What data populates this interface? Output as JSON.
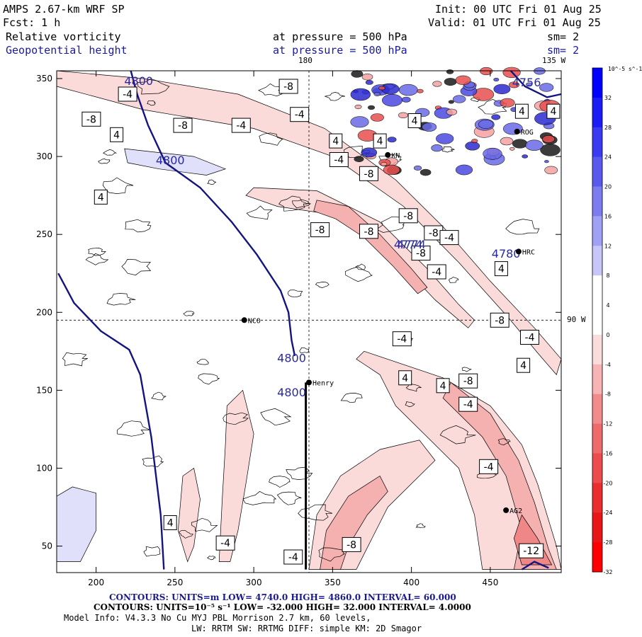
{
  "header": {
    "model": "AMPS 2.67-km WRF SP",
    "forecast": "Fcst:     1 h",
    "init": "Init: 00 UTC Fri 01 Aug 25",
    "valid": "Valid: 01 UTC Fri 01 Aug 25",
    "field1_name": "Relative vorticity",
    "field1_level": "at pressure =  500 hPa",
    "field1_sm": "sm= 2",
    "field2_name": "Geopotential height",
    "field2_level": "at pressure =  500 hPa",
    "field2_sm": "sm= 2"
  },
  "map_labels": {
    "lon_180": "180",
    "lon_135w": "135 W",
    "lon_90w": "90 W"
  },
  "stations": [
    {
      "name": "NCO",
      "x": 294,
      "y": 195
    },
    {
      "name": "Henry",
      "x": 335,
      "y": 155
    },
    {
      "name": "HRC",
      "x": 468,
      "y": 239
    },
    {
      "name": "AG2",
      "x": 460,
      "y": 73
    },
    {
      "name": "KN",
      "x": 385,
      "y": 301
    },
    {
      "name": "ROG",
      "x": 467,
      "y": 316
    }
  ],
  "colorbar": {
    "unit": "10^-5 s^-1",
    "labels": [
      "32",
      "28",
      "24",
      "20",
      "16",
      "12",
      "8",
      "4",
      "0",
      "-4",
      "-8",
      "-12",
      "-16",
      "-20",
      "-24",
      "-28",
      "-32"
    ],
    "colors": [
      "#0000ff",
      "#1b1bf6",
      "#3a3af0",
      "#5959ee",
      "#7c7cf0",
      "#a0a0f4",
      "#c6c6f8",
      "#ffffff",
      "#ffffff",
      "#fadcdc",
      "#f6b4b4",
      "#f28c8c",
      "#ef6a6a",
      "#ec4c4c",
      "#ea2e2e",
      "#e81616",
      "#ff0000"
    ]
  },
  "footer": {
    "line1": "CONTOURS:  UNITS=m  LOW=  4740.0        HIGH=  4860.0        INTERVAL=   60.000",
    "line2": "CONTOURS:  UNITS=10⁻⁵ s⁻¹  LOW=  -32.000        HIGH=  32.000        INTERVAL=   4.0000",
    "line3": "Model Info: V4.3.3    No Cu    MYJ PBL   Morrison            2.7 km,  60 levels,",
    "line4": "LW: RRTM SW: RRTMG   DIFF: simple KM: 2D Smagor"
  },
  "chart_data": {
    "type": "contour-map",
    "xlim": [
      175,
      495
    ],
    "ylim": [
      33,
      355
    ],
    "x_ticks": [
      200,
      250,
      300,
      350,
      400,
      450
    ],
    "y_ticks": [
      50,
      100,
      150,
      200,
      250,
      300,
      350
    ],
    "height_contours": [
      {
        "label": "4800",
        "points": [
          [
            222,
            355
          ],
          [
            226,
            340
          ],
          [
            233,
            320
          ],
          [
            244,
            296
          ],
          [
            266,
            280
          ],
          [
            286,
            258
          ],
          [
            302,
            237
          ],
          [
            317,
            214
          ],
          [
            322,
            200
          ],
          [
            324,
            182
          ],
          [
            326,
            172
          ]
        ]
      },
      {
        "label": "",
        "points": [
          [
            333,
            155
          ],
          [
            333,
            35
          ]
        ]
      },
      {
        "label": "",
        "points": [
          [
            176,
            225
          ],
          [
            186,
            206
          ],
          [
            203,
            188
          ],
          [
            221,
            176
          ],
          [
            228,
            160
          ],
          [
            235,
            120
          ],
          [
            241,
            70
          ],
          [
            243,
            35
          ]
        ]
      },
      {
        "label": "4756",
        "points": [
          [
            463,
            355
          ],
          [
            472,
            345
          ],
          [
            486,
            338
          ],
          [
            495,
            340
          ]
        ]
      },
      {
        "label": "",
        "points": [
          [
            470,
            35
          ],
          [
            478,
            40
          ],
          [
            487,
            36
          ]
        ]
      }
    ],
    "height_labels": [
      {
        "text": "4800",
        "x": 227,
        "y": 346
      },
      {
        "text": "4800",
        "x": 247,
        "y": 295
      },
      {
        "text": "4800",
        "x": 324,
        "y": 168
      },
      {
        "text": "4800",
        "x": 324,
        "y": 146
      },
      {
        "text": "4774",
        "x": 398,
        "y": 241
      },
      {
        "text": "4774",
        "x": 400,
        "y": 241
      },
      {
        "text": "4780",
        "x": 460,
        "y": 235
      },
      {
        "text": "4756",
        "x": 473,
        "y": 345
      }
    ],
    "vorticity_labels": [
      {
        "text": "-4",
        "x": 220,
        "y": 340
      },
      {
        "text": "-8",
        "x": 322,
        "y": 345
      },
      {
        "text": "-8",
        "x": 197,
        "y": 324
      },
      {
        "text": "-8",
        "x": 255,
        "y": 320
      },
      {
        "text": "-4",
        "x": 292,
        "y": 320
      },
      {
        "text": "-4",
        "x": 329,
        "y": 327
      },
      {
        "text": "4",
        "x": 213,
        "y": 314
      },
      {
        "text": "4",
        "x": 380,
        "y": 310
      },
      {
        "text": "-4",
        "x": 354,
        "y": 298
      },
      {
        "text": "-8",
        "x": 373,
        "y": 289
      },
      {
        "text": "4",
        "x": 203,
        "y": 274
      },
      {
        "text": "-8",
        "x": 398,
        "y": 262
      },
      {
        "text": "-8",
        "x": 342,
        "y": 253
      },
      {
        "text": "-8",
        "x": 373,
        "y": 252
      },
      {
        "text": "-8",
        "x": 414,
        "y": 251
      },
      {
        "text": "-4",
        "x": 424,
        "y": 248
      },
      {
        "text": "-8",
        "x": 406,
        "y": 238
      },
      {
        "text": "-4",
        "x": 416,
        "y": 226
      },
      {
        "text": "4",
        "x": 457,
        "y": 228
      },
      {
        "text": "-8",
        "x": 456,
        "y": 195
      },
      {
        "text": "-4",
        "x": 394,
        "y": 183
      },
      {
        "text": "-4",
        "x": 475,
        "y": 184
      },
      {
        "text": "4",
        "x": 471,
        "y": 166
      },
      {
        "text": "4",
        "x": 396,
        "y": 158
      },
      {
        "text": "4",
        "x": 420,
        "y": 153
      },
      {
        "text": "-8",
        "x": 436,
        "y": 156
      },
      {
        "text": "-4",
        "x": 436,
        "y": 141
      },
      {
        "text": "-4",
        "x": 449,
        "y": 101
      },
      {
        "text": "4",
        "x": 247,
        "y": 65
      },
      {
        "text": "-4",
        "x": 282,
        "y": 52
      },
      {
        "text": "-8",
        "x": 362,
        "y": 51
      },
      {
        "text": "-4",
        "x": 325,
        "y": 43
      },
      {
        "text": "-12",
        "x": 476,
        "y": 47
      },
      {
        "text": "4",
        "x": 470,
        "y": 329
      },
      {
        "text": "4",
        "x": 490,
        "y": 329
      },
      {
        "text": "4",
        "x": 402,
        "y": 323
      },
      {
        "text": "4",
        "x": 352,
        "y": 310
      }
    ],
    "shaded_regions": [
      {
        "level": -4,
        "points": [
          [
            175,
            345
          ],
          [
            230,
            330
          ],
          [
            300,
            318
          ],
          [
            350,
            300
          ],
          [
            395,
            268
          ],
          [
            430,
            232
          ],
          [
            462,
            196
          ],
          [
            480,
            174
          ],
          [
            492,
            160
          ],
          [
            495,
            170
          ],
          [
            478,
            190
          ],
          [
            450,
            220
          ],
          [
            420,
            255
          ],
          [
            390,
            285
          ],
          [
            345,
            318
          ],
          [
            290,
            340
          ],
          [
            230,
            350
          ],
          [
            175,
            355
          ]
        ]
      },
      {
        "level": -4,
        "points": [
          [
            300,
            280
          ],
          [
            340,
            278
          ],
          [
            380,
            258
          ],
          [
            410,
            228
          ],
          [
            430,
            205
          ],
          [
            440,
            195
          ],
          [
            436,
            190
          ],
          [
            415,
            208
          ],
          [
            385,
            240
          ],
          [
            355,
            262
          ],
          [
            315,
            268
          ],
          [
            295,
            275
          ]
        ]
      },
      {
        "level": -8,
        "points": [
          [
            340,
            272
          ],
          [
            360,
            268
          ],
          [
            380,
            250
          ],
          [
            400,
            228
          ],
          [
            410,
            216
          ],
          [
            404,
            212
          ],
          [
            388,
            230
          ],
          [
            370,
            248
          ],
          [
            352,
            260
          ],
          [
            338,
            265
          ]
        ]
      },
      {
        "level": -4,
        "points": [
          [
            370,
            175
          ],
          [
            420,
            158
          ],
          [
            450,
            140
          ],
          [
            470,
            115
          ],
          [
            480,
            90
          ],
          [
            492,
            50
          ],
          [
            495,
            35
          ],
          [
            445,
            35
          ],
          [
            440,
            70
          ],
          [
            430,
            100
          ],
          [
            410,
            120
          ],
          [
            390,
            140
          ],
          [
            380,
            160
          ],
          [
            365,
            170
          ]
        ]
      },
      {
        "level": -8,
        "points": [
          [
            425,
            155
          ],
          [
            450,
            135
          ],
          [
            468,
            105
          ],
          [
            478,
            78
          ],
          [
            487,
            48
          ],
          [
            492,
            35
          ],
          [
            465,
            35
          ],
          [
            470,
            60
          ],
          [
            460,
            95
          ],
          [
            445,
            120
          ],
          [
            420,
            145
          ]
        ]
      },
      {
        "level": -12,
        "points": [
          [
            470,
            70
          ],
          [
            480,
            55
          ],
          [
            489,
            38
          ],
          [
            470,
            38
          ],
          [
            465,
            55
          ]
        ]
      },
      {
        "level": -4,
        "points": [
          [
            335,
            35
          ],
          [
            340,
            70
          ],
          [
            355,
            95
          ],
          [
            380,
            112
          ],
          [
            405,
            118
          ],
          [
            415,
            105
          ],
          [
            400,
            90
          ],
          [
            385,
            75
          ],
          [
            375,
            55
          ],
          [
            365,
            35
          ]
        ]
      },
      {
        "level": -8,
        "points": [
          [
            342,
            35
          ],
          [
            346,
            60
          ],
          [
            360,
            82
          ],
          [
            380,
            95
          ],
          [
            385,
            85
          ],
          [
            372,
            70
          ],
          [
            360,
            50
          ],
          [
            355,
            35
          ]
        ]
      },
      {
        "level": 4,
        "points": [
          [
            218,
            305
          ],
          [
            262,
            300
          ],
          [
            282,
            292
          ],
          [
            270,
            288
          ],
          [
            240,
            292
          ],
          [
            220,
            296
          ]
        ]
      },
      {
        "level": 4,
        "points": [
          [
            175,
            82
          ],
          [
            185,
            88
          ],
          [
            200,
            84
          ],
          [
            200,
            60
          ],
          [
            190,
            40
          ],
          [
            175,
            40
          ]
        ]
      },
      {
        "level": -4,
        "points": [
          [
            283,
            140
          ],
          [
            293,
            150
          ],
          [
            300,
            122
          ],
          [
            295,
            90
          ],
          [
            290,
            60
          ],
          [
            285,
            40
          ],
          [
            278,
            40
          ],
          [
            280,
            80
          ],
          [
            282,
            115
          ]
        ]
      },
      {
        "level": -4,
        "points": [
          [
            255,
            95
          ],
          [
            262,
            100
          ],
          [
            266,
            80
          ],
          [
            262,
            50
          ],
          [
            258,
            40
          ],
          [
            252,
            60
          ]
        ]
      }
    ],
    "grid": "dashed crosshair",
    "dividing_lines": [
      {
        "x": 335
      },
      {
        "y": 195
      }
    ]
  }
}
